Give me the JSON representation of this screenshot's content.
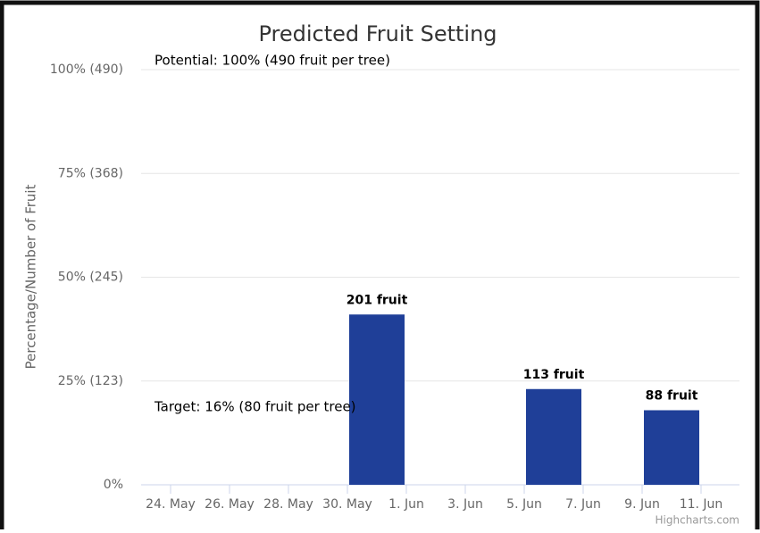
{
  "chart_data": {
    "type": "bar",
    "title": "Predicted Fruit Setting",
    "y_axis_label": "Percentage/Number of Fruit",
    "annotations": [
      "Potential: 100% (490 fruit per tree)",
      "Target: 16% (80 fruit per tree)"
    ],
    "credits": "Highcharts.com",
    "x": [
      "05-31",
      "06-06",
      "06-10"
    ],
    "values": [
      201,
      113,
      88
    ],
    "value_labels": [
      "201 fruit",
      "113 fruit",
      "88 fruit"
    ],
    "color": "#1f3f98",
    "xlim": [
      "05-23",
      "06-12"
    ],
    "xticks": [
      {
        "value": "05-24",
        "label": "24. May"
      },
      {
        "value": "05-26",
        "label": "26. May"
      },
      {
        "value": "05-28",
        "label": "28. May"
      },
      {
        "value": "05-30",
        "label": "30. May"
      },
      {
        "value": "06-01",
        "label": "1. Jun"
      },
      {
        "value": "06-03",
        "label": "3. Jun"
      },
      {
        "value": "06-05",
        "label": "5. Jun"
      },
      {
        "value": "06-07",
        "label": "7. Jun"
      },
      {
        "value": "06-09",
        "label": "9. Jun"
      },
      {
        "value": "06-11",
        "label": "11. Jun"
      }
    ],
    "ylim": [
      0,
      490
    ],
    "yticks": [
      {
        "value": 0,
        "label": "0%"
      },
      {
        "value": 122.5,
        "label": "25% (123)"
      },
      {
        "value": 245,
        "label": "50% (245)"
      },
      {
        "value": 367.5,
        "label": "75% (368)"
      },
      {
        "value": 490,
        "label": "100% (490)"
      }
    ],
    "grid": true
  }
}
